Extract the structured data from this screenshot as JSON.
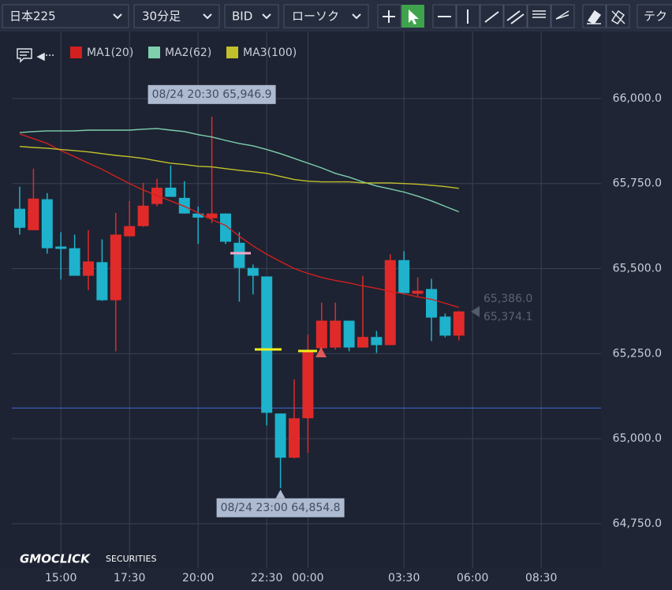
{
  "toolbar": {
    "symbol": "日本225",
    "timeframe": "30分足",
    "price_type": "BID",
    "chart_style": "ローソク",
    "technical": "テク"
  },
  "logo": {
    "brand": "GMOCLICK",
    "sub": "SECURITIES"
  },
  "price_labels": [
    "65,386.0",
    "65,374.1"
  ],
  "chart_data": {
    "type": "candlestick",
    "categories": [
      null,
      null,
      null,
      "15:00",
      null,
      null,
      null,
      null,
      "17:30",
      null,
      null,
      null,
      null,
      "20:00",
      null,
      null,
      null,
      null,
      "22:30",
      null,
      null,
      "00:00",
      null,
      null,
      null,
      null,
      null,
      null,
      "03:30",
      null,
      null,
      null,
      null,
      "06:00",
      null,
      null,
      null,
      null,
      "08:30",
      null,
      null,
      null,
      null,
      null
    ],
    "open": [
      65676,
      65613,
      65704,
      65565,
      65560,
      65479,
      65519,
      65407,
      65595,
      65625,
      65690,
      65738,
      65708,
      65662,
      65648,
      65662,
      65576,
      65502,
      65477,
      65074,
      64944,
      65060,
      65266,
      65268,
      65347,
      65268,
      65299,
      65275,
      65525,
      65426,
      65440,
      65359,
      65303,
      null,
      null,
      null,
      null,
      null,
      null,
      null,
      null,
      null,
      null,
      null
    ],
    "high": [
      65741,
      65794,
      65722,
      65607,
      65600,
      65613,
      65586,
      65664,
      65699,
      65752,
      65764,
      65803,
      65757,
      65683,
      65946.9,
      65662,
      65607,
      65512,
      65477,
      65074,
      65174,
      65306,
      65400,
      65400,
      65347,
      65479,
      65317,
      65542,
      65551,
      65474,
      65470,
      65368,
      65375,
      null,
      null,
      null,
      null,
      null,
      null,
      null,
      null,
      null,
      null,
      null
    ],
    "low": [
      65600,
      65613,
      65544,
      65468,
      65479,
      65437,
      65405,
      65257,
      65595,
      65623,
      65683,
      65711,
      65662,
      65572,
      65634,
      65572,
      65403,
      65424,
      65039,
      64854.8,
      64942,
      64958,
      65262,
      65262,
      65257,
      65268,
      65252,
      65275,
      65428,
      65417,
      65287,
      65298,
      65289,
      null,
      null,
      null,
      null,
      null,
      null,
      null,
      null,
      null,
      null,
      null
    ],
    "close": [
      65620,
      65706,
      65560,
      65558,
      65479,
      65521,
      65407,
      65600,
      65625,
      65685,
      65738,
      65711,
      65662,
      65650,
      65662,
      65579,
      65502,
      65479,
      65076,
      64944,
      65060,
      65259,
      65347,
      65347,
      65268,
      65299,
      65275,
      65525,
      65428,
      65435,
      65356,
      65303,
      65374.1,
      null,
      null,
      null,
      null,
      null,
      null,
      null,
      null,
      null,
      null,
      null
    ],
    "up_color": "#e02a2a",
    "down_color": "#1eb2cc",
    "series": [
      {
        "name": "MA1(20)",
        "color": "#d21f1f",
        "values": [
          65896,
          65882,
          65868,
          65847,
          65829,
          65810,
          65792,
          65771,
          65750,
          65731,
          65715,
          65699,
          65683,
          65664,
          65644,
          65627,
          65595,
          65567,
          65542,
          65521,
          65500,
          65486,
          65474,
          65465,
          65458,
          65449,
          65442,
          65433,
          65426,
          65417,
          65410,
          65398,
          65386.0,
          null,
          null,
          null,
          null,
          null,
          null,
          null,
          null,
          null,
          null,
          null
        ]
      },
      {
        "name": "MA2(62)",
        "color": "#7fcfae",
        "values": [
          65900,
          65903,
          65905,
          65905,
          65905,
          65907,
          65907,
          65907,
          65907,
          65910,
          65912,
          65907,
          65903,
          65894,
          65887,
          65877,
          65868,
          65861,
          65850,
          65838,
          65824,
          65810,
          65796,
          65780,
          65769,
          65755,
          65743,
          65734,
          65725,
          65713,
          65699,
          65683,
          65667,
          null,
          null,
          null,
          null,
          null,
          null,
          null,
          null,
          null,
          null,
          null
        ]
      },
      {
        "name": "MA3(100)",
        "color": "#c2c02a",
        "values": [
          65859,
          65856,
          65854,
          65850,
          65847,
          65843,
          65838,
          65833,
          65829,
          65824,
          65817,
          65810,
          65806,
          65801,
          65799,
          65794,
          65789,
          65785,
          65780,
          65771,
          65762,
          65757,
          65755,
          65755,
          65755,
          65752,
          65752,
          65752,
          65750,
          65748,
          65745,
          65741,
          65736,
          null,
          null,
          null,
          null,
          null,
          null,
          null,
          null,
          null,
          null,
          null
        ]
      }
    ],
    "ylim": [
      64620,
      66197
    ],
    "yticks": [
      {
        "value": 64750,
        "label": "64,750.0"
      },
      {
        "value": 65000,
        "label": "65,000.0"
      },
      {
        "value": 65250,
        "label": "65,250.0"
      },
      {
        "value": 65500,
        "label": "65,500.0"
      },
      {
        "value": 65750,
        "label": "65,750.0"
      },
      {
        "value": 66000,
        "label": "66,000.0"
      }
    ],
    "grid": true,
    "hline": 65090,
    "hline_color": "#3f63c8",
    "annotations": [
      "08/24 20:30 65,946.9",
      "08/24 23:00 64,854.8"
    ]
  }
}
